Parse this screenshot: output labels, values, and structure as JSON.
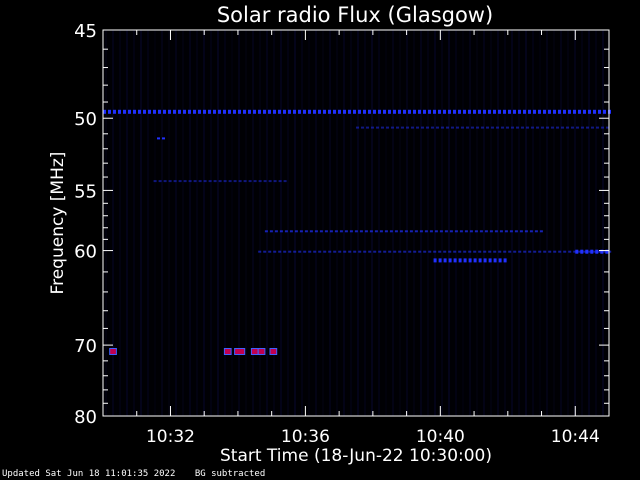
{
  "chart_data": {
    "type": "heatmap",
    "title": "Solar radio Flux (Glasgow)",
    "ylabel": "Frequency [MHz]",
    "xlabel": "Start Time (18-Jun-22 10:30:00)",
    "x_ticks": [
      "10:32",
      "10:36",
      "10:40",
      "10:44"
    ],
    "x_tick_values_min": [
      2,
      6,
      10,
      14
    ],
    "x_range_min": [
      0,
      15
    ],
    "y_ticks": [
      45,
      50,
      55,
      60,
      70,
      80
    ],
    "y_range_mhz": [
      45,
      80
    ],
    "colors": {
      "background": "#000000",
      "frame": "#ffffff",
      "band": "#2030ff",
      "burst": "#c00050"
    },
    "bands": [
      {
        "freq": 49.6,
        "t_start": 0.0,
        "t_end": 15.0,
        "intensity": 0.9
      },
      {
        "freq": 50.6,
        "t_start": 7.5,
        "t_end": 15.0,
        "intensity": 0.5
      },
      {
        "freq": 51.3,
        "t_start": 1.6,
        "t_end": 1.8,
        "intensity": 0.7
      },
      {
        "freq": 54.3,
        "t_start": 1.5,
        "t_end": 5.5,
        "intensity": 0.2
      },
      {
        "freq": 58.3,
        "t_start": 4.8,
        "t_end": 13.0,
        "intensity": 0.5
      },
      {
        "freq": 60.1,
        "t_start": 4.6,
        "t_end": 15.0,
        "intensity": 0.45
      },
      {
        "freq": 60.9,
        "t_start": 9.8,
        "t_end": 12.0,
        "intensity": 0.8
      },
      {
        "freq": 60.1,
        "t_start": 14.0,
        "t_end": 15.0,
        "intensity": 0.9
      }
    ],
    "bursts": [
      {
        "freq": 70.8,
        "t_start": 0.2,
        "t_end": 0.4
      },
      {
        "freq": 70.8,
        "t_start": 3.6,
        "t_end": 3.8
      },
      {
        "freq": 70.8,
        "t_start": 3.9,
        "t_end": 4.2
      },
      {
        "freq": 70.8,
        "t_start": 4.4,
        "t_end": 4.6
      },
      {
        "freq": 70.8,
        "t_start": 4.6,
        "t_end": 4.8
      },
      {
        "freq": 70.8,
        "t_start": 4.95,
        "t_end": 5.15
      }
    ]
  },
  "footer": {
    "updated": "Updated Sat Jun 18 11:01:35 2022",
    "note": "BG subtracted"
  }
}
